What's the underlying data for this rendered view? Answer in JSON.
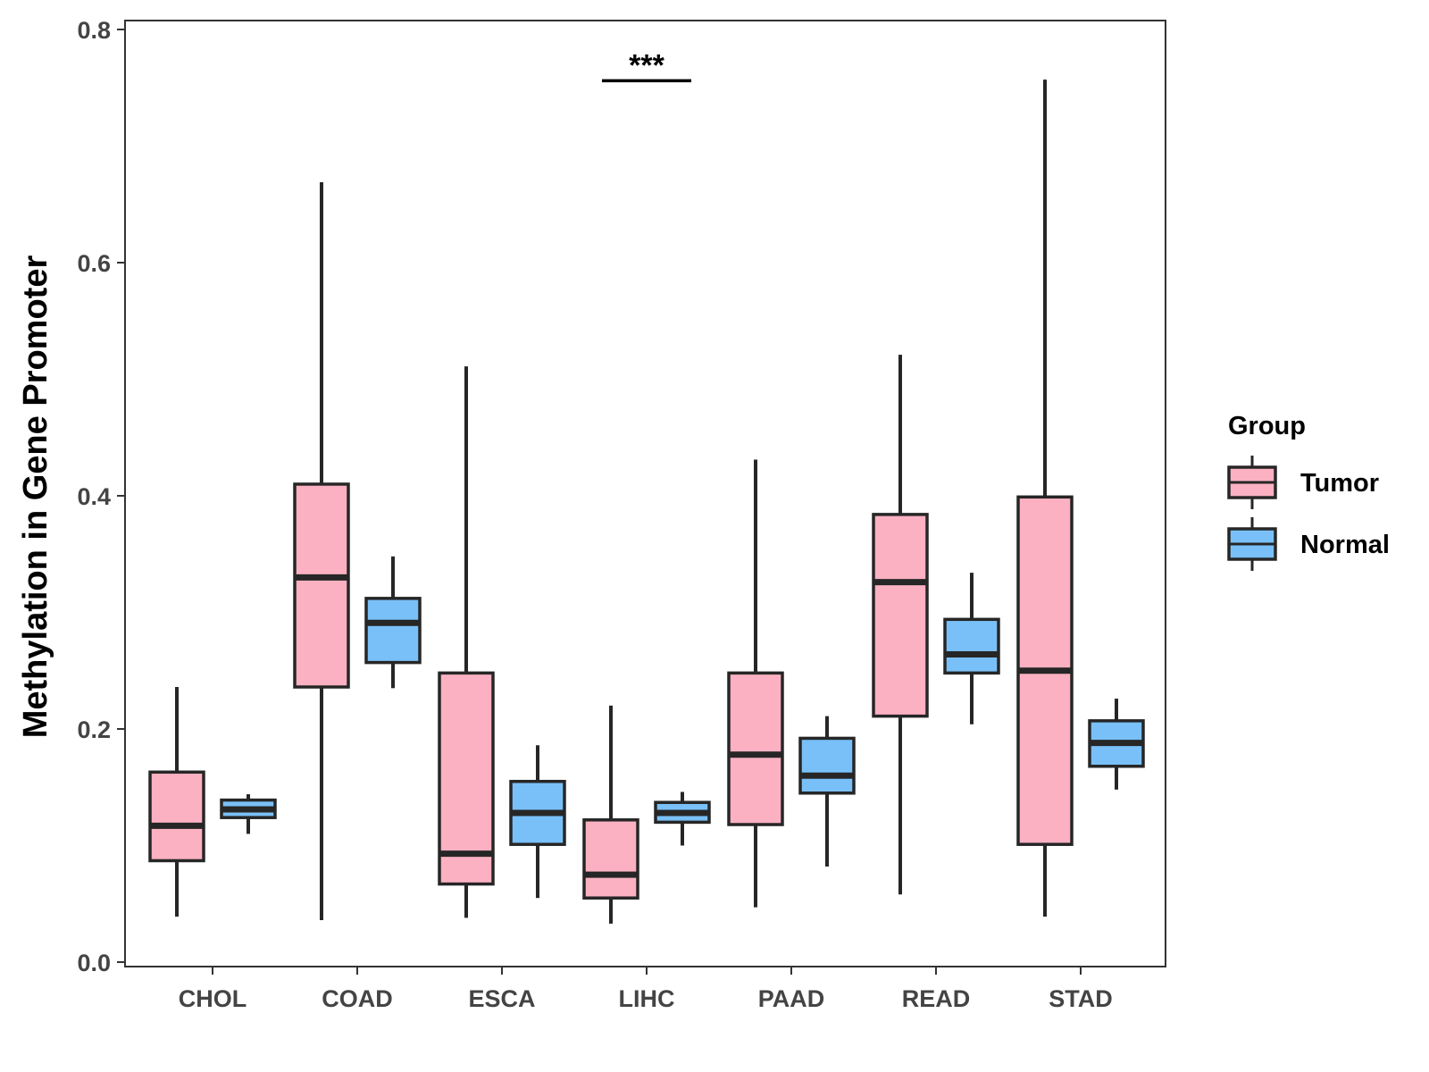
{
  "chart_data": {
    "type": "boxplot",
    "title": "",
    "xlabel": "",
    "ylabel": "Methylation in Gene Promoter",
    "ylim": [
      0,
      0.8
    ],
    "yticks": [
      0.0,
      0.2,
      0.4,
      0.6,
      0.8
    ],
    "ytick_labels": [
      "0.0",
      "0.2",
      "0.4",
      "0.6",
      "0.8"
    ],
    "categories": [
      "CHOL",
      "COAD",
      "ESCA",
      "LIHC",
      "PAAD",
      "READ",
      "STAD"
    ],
    "legend": {
      "title": "Group",
      "position": "right",
      "entries": [
        {
          "name": "Tumor",
          "color": "#FBB1C2"
        },
        {
          "name": "Normal",
          "color": "#79C0F8"
        }
      ]
    },
    "series": [
      {
        "name": "Tumor",
        "color": "#FBB1C2",
        "boxes": [
          {
            "category": "CHOL",
            "whisker_low": 0.039,
            "q1": 0.087,
            "median": 0.117,
            "q3": 0.163,
            "whisker_high": 0.236
          },
          {
            "category": "COAD",
            "whisker_low": 0.036,
            "q1": 0.236,
            "median": 0.33,
            "q3": 0.41,
            "whisker_high": 0.669
          },
          {
            "category": "ESCA",
            "whisker_low": 0.038,
            "q1": 0.067,
            "median": 0.093,
            "q3": 0.248,
            "whisker_high": 0.511
          },
          {
            "category": "LIHC",
            "whisker_low": 0.033,
            "q1": 0.055,
            "median": 0.075,
            "q3": 0.122,
            "whisker_high": 0.22
          },
          {
            "category": "PAAD",
            "whisker_low": 0.047,
            "q1": 0.118,
            "median": 0.178,
            "q3": 0.248,
            "whisker_high": 0.431
          },
          {
            "category": "READ",
            "whisker_low": 0.058,
            "q1": 0.211,
            "median": 0.326,
            "q3": 0.384,
            "whisker_high": 0.521
          },
          {
            "category": "STAD",
            "whisker_low": 0.039,
            "q1": 0.101,
            "median": 0.25,
            "q3": 0.399,
            "whisker_high": 0.757
          }
        ]
      },
      {
        "name": "Normal",
        "color": "#79C0F8",
        "boxes": [
          {
            "category": "CHOL",
            "whisker_low": 0.11,
            "q1": 0.124,
            "median": 0.131,
            "q3": 0.139,
            "whisker_high": 0.144
          },
          {
            "category": "COAD",
            "whisker_low": 0.235,
            "q1": 0.257,
            "median": 0.291,
            "q3": 0.312,
            "whisker_high": 0.348
          },
          {
            "category": "ESCA",
            "whisker_low": 0.055,
            "q1": 0.101,
            "median": 0.128,
            "q3": 0.155,
            "whisker_high": 0.186
          },
          {
            "category": "LIHC",
            "whisker_low": 0.1,
            "q1": 0.12,
            "median": 0.128,
            "q3": 0.137,
            "whisker_high": 0.146
          },
          {
            "category": "PAAD",
            "whisker_low": 0.082,
            "q1": 0.145,
            "median": 0.16,
            "q3": 0.192,
            "whisker_high": 0.211
          },
          {
            "category": "READ",
            "whisker_low": 0.204,
            "q1": 0.248,
            "median": 0.264,
            "q3": 0.294,
            "whisker_high": 0.334
          },
          {
            "category": "STAD",
            "whisker_low": 0.148,
            "q1": 0.168,
            "median": 0.188,
            "q3": 0.207,
            "whisker_high": 0.226
          }
        ]
      }
    ],
    "annotations": [
      {
        "category": "LIHC",
        "label": "***",
        "y": 0.756
      }
    ]
  }
}
